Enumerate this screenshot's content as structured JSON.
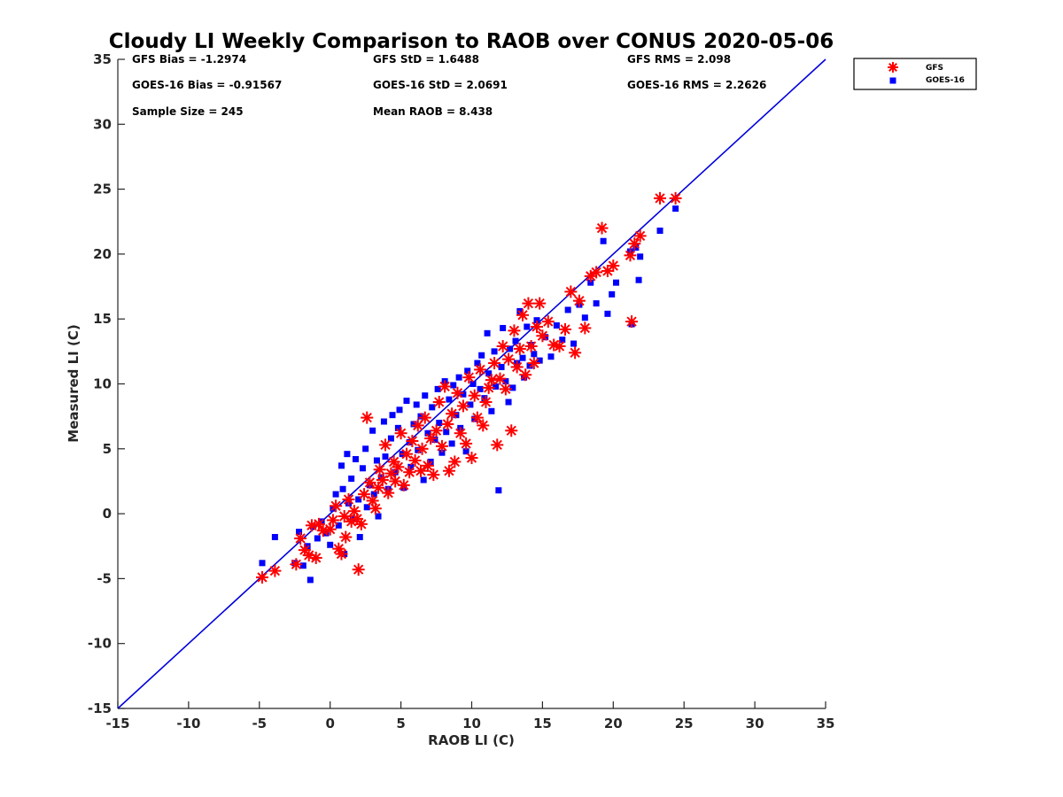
{
  "chart_data": {
    "type": "scatter",
    "title": "Cloudy LI Weekly Comparison to RAOB over CONUS 2020-05-06",
    "xlabel": "RAOB LI (C)",
    "ylabel": "Measured LI (C)",
    "xlim": [
      -15,
      35
    ],
    "ylim": [
      -15,
      35
    ],
    "xticks": [
      "-15",
      "-10",
      "-5",
      "0",
      "5",
      "10",
      "15",
      "20",
      "25",
      "30",
      "35"
    ],
    "yticks": [
      "-15",
      "-10",
      "-5",
      "0",
      "5",
      "10",
      "15",
      "20",
      "25",
      "30",
      "35"
    ],
    "grid": false,
    "legend_position": "top-right",
    "reference_line": {
      "x": [
        -15,
        35
      ],
      "y": [
        -15,
        35
      ],
      "color": "#0000dd"
    },
    "stats": [
      {
        "text": "GFS Bias = -1.2974"
      },
      {
        "text": "GFS StD = 1.6488"
      },
      {
        "text": "GFS RMS = 2.098"
      },
      {
        "text": "GOES-16 Bias = -0.91567"
      },
      {
        "text": "GOES-16 StD = 2.0691"
      },
      {
        "text": "GOES-16 RMS = 2.2626"
      },
      {
        "text": "Sample Size = 245"
      },
      {
        "text": "Mean RAOB = 8.438"
      }
    ],
    "series": [
      {
        "name": "GFS",
        "marker": "asterisk",
        "color": "#ff0000",
        "points": [
          [
            -4.8,
            -4.9
          ],
          [
            -3.9,
            -4.4
          ],
          [
            -2.4,
            -3.9
          ],
          [
            -2.1,
            -1.9
          ],
          [
            -1.8,
            -2.8
          ],
          [
            -1.5,
            -3.2
          ],
          [
            -1.3,
            -0.9
          ],
          [
            -1.0,
            -3.4
          ],
          [
            -0.8,
            -0.8
          ],
          [
            -0.5,
            -1.3
          ],
          [
            0.0,
            -1.2
          ],
          [
            0.2,
            -0.5
          ],
          [
            0.4,
            0.6
          ],
          [
            0.6,
            -2.7
          ],
          [
            0.8,
            -3.1
          ],
          [
            1.0,
            -0.2
          ],
          [
            1.1,
            -1.8
          ],
          [
            1.3,
            1.1
          ],
          [
            1.5,
            -0.6
          ],
          [
            1.7,
            0.2
          ],
          [
            1.9,
            -0.4
          ],
          [
            2.0,
            -4.3
          ],
          [
            2.2,
            -0.8
          ],
          [
            2.4,
            1.5
          ],
          [
            2.6,
            7.4
          ],
          [
            2.8,
            2.4
          ],
          [
            3.0,
            1.0
          ],
          [
            3.2,
            0.4
          ],
          [
            3.4,
            2.0
          ],
          [
            3.5,
            3.4
          ],
          [
            3.7,
            2.6
          ],
          [
            3.9,
            5.3
          ],
          [
            4.1,
            1.6
          ],
          [
            4.3,
            3.1
          ],
          [
            4.5,
            4.0
          ],
          [
            4.6,
            2.5
          ],
          [
            4.8,
            3.6
          ],
          [
            5.0,
            6.2
          ],
          [
            5.2,
            2.2
          ],
          [
            5.4,
            4.6
          ],
          [
            5.6,
            3.2
          ],
          [
            5.8,
            5.6
          ],
          [
            6.0,
            4.1
          ],
          [
            6.2,
            6.8
          ],
          [
            6.4,
            3.3
          ],
          [
            6.5,
            5.0
          ],
          [
            6.7,
            7.4
          ],
          [
            6.9,
            3.7
          ],
          [
            7.1,
            5.8
          ],
          [
            7.3,
            3.0
          ],
          [
            7.5,
            6.4
          ],
          [
            7.7,
            8.6
          ],
          [
            7.9,
            5.2
          ],
          [
            8.1,
            9.8
          ],
          [
            8.3,
            6.9
          ],
          [
            8.4,
            3.3
          ],
          [
            8.6,
            7.7
          ],
          [
            8.8,
            4.0
          ],
          [
            9.0,
            9.3
          ],
          [
            9.2,
            6.2
          ],
          [
            9.4,
            8.3
          ],
          [
            9.6,
            5.4
          ],
          [
            9.8,
            10.5
          ],
          [
            10.0,
            4.3
          ],
          [
            10.2,
            9.1
          ],
          [
            10.4,
            7.4
          ],
          [
            10.6,
            11.1
          ],
          [
            10.8,
            6.8
          ],
          [
            11.0,
            8.6
          ],
          [
            11.2,
            9.7
          ],
          [
            11.4,
            10.3
          ],
          [
            11.6,
            11.6
          ],
          [
            11.8,
            5.3
          ],
          [
            12.0,
            10.4
          ],
          [
            12.2,
            12.9
          ],
          [
            12.4,
            9.6
          ],
          [
            12.6,
            11.9
          ],
          [
            12.8,
            6.4
          ],
          [
            13.0,
            14.1
          ],
          [
            13.2,
            11.3
          ],
          [
            13.4,
            12.7
          ],
          [
            13.6,
            15.3
          ],
          [
            13.8,
            10.7
          ],
          [
            14.0,
            16.2
          ],
          [
            14.2,
            12.9
          ],
          [
            14.4,
            11.6
          ],
          [
            14.6,
            14.4
          ],
          [
            14.8,
            16.2
          ],
          [
            15.0,
            13.7
          ],
          [
            15.4,
            14.8
          ],
          [
            15.8,
            13.0
          ],
          [
            16.2,
            12.9
          ],
          [
            16.6,
            14.2
          ],
          [
            17.0,
            17.1
          ],
          [
            17.3,
            12.4
          ],
          [
            17.6,
            16.4
          ],
          [
            18.0,
            14.3
          ],
          [
            18.4,
            18.3
          ],
          [
            18.8,
            18.6
          ],
          [
            19.2,
            22.0
          ],
          [
            19.6,
            18.7
          ],
          [
            20.0,
            19.1
          ],
          [
            21.2,
            19.9
          ],
          [
            21.3,
            14.8
          ],
          [
            21.5,
            20.8
          ],
          [
            21.9,
            21.4
          ],
          [
            23.3,
            24.3
          ],
          [
            24.4,
            24.3
          ]
        ]
      },
      {
        "name": "GOES-16",
        "marker": "square",
        "color": "#0000ff",
        "points": [
          [
            -4.8,
            -3.8
          ],
          [
            -3.9,
            -1.8
          ],
          [
            -2.5,
            -3.8
          ],
          [
            -2.2,
            -1.4
          ],
          [
            -1.9,
            -4.0
          ],
          [
            -1.6,
            -2.5
          ],
          [
            -1.4,
            -5.1
          ],
          [
            -1.2,
            -1.0
          ],
          [
            -0.9,
            -1.9
          ],
          [
            -0.6,
            -0.6
          ],
          [
            -0.3,
            -1.5
          ],
          [
            0.0,
            -2.4
          ],
          [
            0.2,
            0.4
          ],
          [
            0.4,
            1.5
          ],
          [
            0.6,
            -0.9
          ],
          [
            0.8,
            3.7
          ],
          [
            0.9,
            1.9
          ],
          [
            1.0,
            -3.1
          ],
          [
            1.2,
            4.6
          ],
          [
            1.3,
            0.8
          ],
          [
            1.5,
            2.7
          ],
          [
            1.6,
            -0.4
          ],
          [
            1.8,
            4.2
          ],
          [
            2.0,
            1.1
          ],
          [
            2.1,
            -1.8
          ],
          [
            2.3,
            3.5
          ],
          [
            2.5,
            5.0
          ],
          [
            2.6,
            0.5
          ],
          [
            2.8,
            2.2
          ],
          [
            3.0,
            6.4
          ],
          [
            3.1,
            1.5
          ],
          [
            3.3,
            4.1
          ],
          [
            3.4,
            -0.2
          ],
          [
            3.6,
            2.8
          ],
          [
            3.8,
            7.1
          ],
          [
            3.9,
            4.4
          ],
          [
            4.1,
            1.9
          ],
          [
            4.3,
            5.8
          ],
          [
            4.4,
            7.6
          ],
          [
            4.6,
            3.2
          ],
          [
            4.8,
            6.6
          ],
          [
            4.9,
            8.0
          ],
          [
            5.1,
            4.6
          ],
          [
            5.2,
            2.0
          ],
          [
            5.4,
            8.7
          ],
          [
            5.6,
            5.5
          ],
          [
            5.7,
            3.6
          ],
          [
            5.9,
            6.9
          ],
          [
            6.1,
            8.4
          ],
          [
            6.2,
            4.9
          ],
          [
            6.4,
            7.5
          ],
          [
            6.6,
            2.6
          ],
          [
            6.7,
            9.1
          ],
          [
            6.9,
            6.2
          ],
          [
            7.1,
            4.0
          ],
          [
            7.2,
            8.2
          ],
          [
            7.4,
            5.7
          ],
          [
            7.6,
            9.6
          ],
          [
            7.7,
            7.0
          ],
          [
            7.9,
            4.7
          ],
          [
            8.1,
            10.2
          ],
          [
            8.2,
            6.3
          ],
          [
            8.4,
            8.8
          ],
          [
            8.6,
            5.4
          ],
          [
            8.7,
            9.9
          ],
          [
            8.9,
            7.6
          ],
          [
            9.1,
            10.5
          ],
          [
            9.2,
            6.6
          ],
          [
            9.4,
            9.2
          ],
          [
            9.6,
            4.8
          ],
          [
            9.7,
            11.0
          ],
          [
            9.9,
            8.4
          ],
          [
            10.1,
            10.0
          ],
          [
            10.2,
            7.3
          ],
          [
            10.4,
            11.6
          ],
          [
            10.6,
            9.6
          ],
          [
            10.7,
            12.2
          ],
          [
            10.9,
            8.9
          ],
          [
            11.1,
            13.9
          ],
          [
            11.2,
            10.8
          ],
          [
            11.4,
            7.9
          ],
          [
            11.6,
            12.5
          ],
          [
            11.7,
            9.8
          ],
          [
            11.9,
            1.8
          ],
          [
            12.1,
            11.3
          ],
          [
            12.2,
            14.3
          ],
          [
            12.4,
            10.2
          ],
          [
            12.6,
            8.6
          ],
          [
            12.7,
            12.7
          ],
          [
            12.9,
            9.7
          ],
          [
            13.1,
            13.3
          ],
          [
            13.2,
            11.6
          ],
          [
            13.4,
            15.6
          ],
          [
            13.6,
            12.0
          ],
          [
            13.7,
            10.5
          ],
          [
            13.9,
            14.4
          ],
          [
            14.1,
            11.4
          ],
          [
            14.2,
            13.0
          ],
          [
            14.4,
            12.3
          ],
          [
            14.6,
            14.9
          ],
          [
            14.8,
            11.8
          ],
          [
            15.2,
            13.6
          ],
          [
            15.6,
            12.1
          ],
          [
            16.0,
            14.5
          ],
          [
            16.4,
            13.4
          ],
          [
            16.8,
            15.7
          ],
          [
            17.2,
            13.1
          ],
          [
            17.6,
            16.1
          ],
          [
            18.0,
            15.1
          ],
          [
            18.4,
            17.8
          ],
          [
            18.8,
            16.2
          ],
          [
            19.3,
            21.0
          ],
          [
            19.6,
            15.4
          ],
          [
            19.9,
            16.9
          ],
          [
            20.2,
            17.8
          ],
          [
            21.2,
            20.2
          ],
          [
            21.3,
            14.6
          ],
          [
            21.6,
            20.5
          ],
          [
            21.8,
            18.0
          ],
          [
            21.9,
            19.8
          ],
          [
            23.3,
            21.8
          ],
          [
            24.4,
            23.5
          ]
        ]
      }
    ]
  }
}
